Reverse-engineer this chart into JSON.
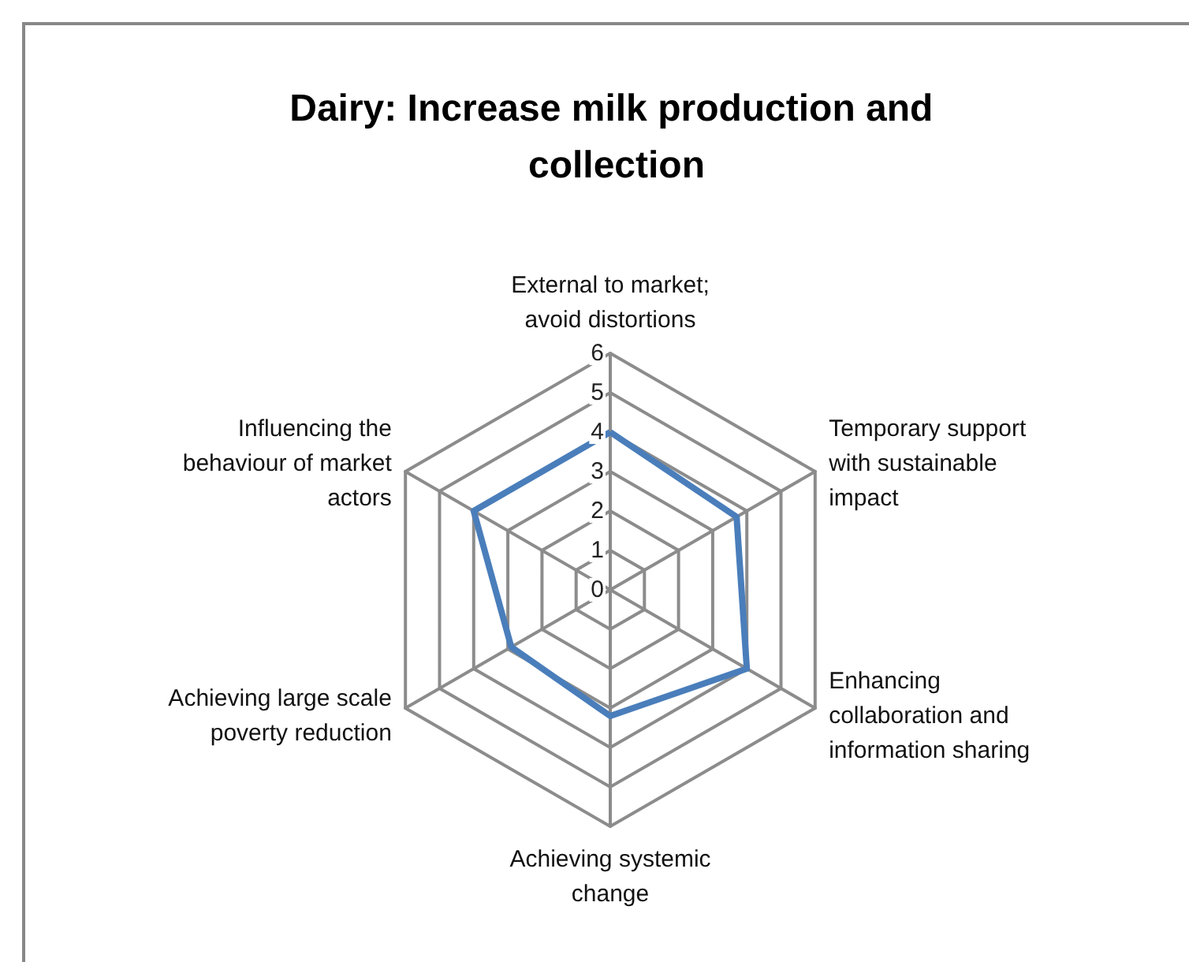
{
  "chart_data": {
    "type": "radar",
    "title": "Dairy: Increase milk production and collection",
    "categories": [
      "External to market; avoid distortions",
      "Temporary support with sustainable impact",
      "Enhancing collaboration and information sharing",
      "Achieving systemic change",
      "Achieving large scale poverty reduction",
      "Influencing the behaviour of market actors"
    ],
    "series": [
      {
        "color": "#4a7ebb",
        "values": [
          4,
          3.7,
          4,
          3.2,
          2.9,
          4
        ]
      }
    ],
    "ylim": [
      0,
      6
    ],
    "yticks": [
      0,
      1,
      2,
      3,
      4,
      5,
      6
    ],
    "grid": true,
    "marker": "none"
  }
}
